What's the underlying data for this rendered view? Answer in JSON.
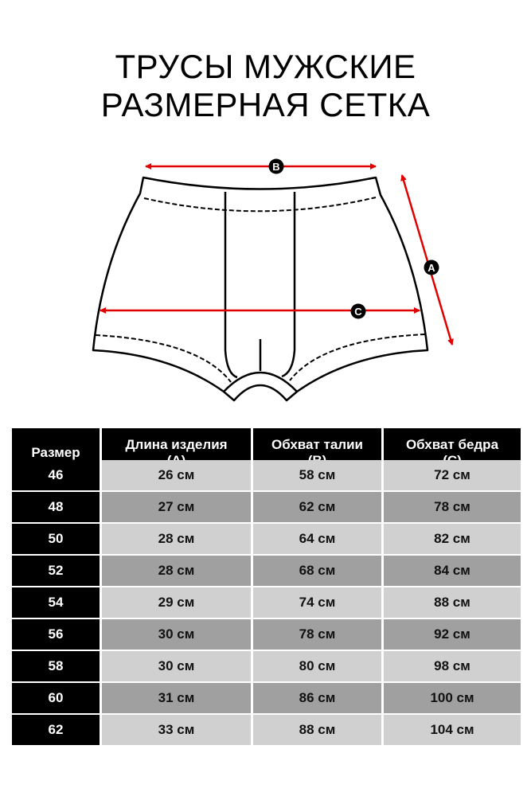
{
  "title": {
    "line1": "ТРУСЫ МУЖСКИЕ",
    "line2": "РАЗМЕРНАЯ СЕТКА"
  },
  "diagram": {
    "labels": {
      "a": "A",
      "b": "B",
      "c": "C"
    },
    "arrow_color": "#e00000"
  },
  "table": {
    "headers": [
      {
        "line1": "Размер",
        "line2": ""
      },
      {
        "line1": "Длина изделия",
        "line2": "(A)"
      },
      {
        "line1": "Обхват талии",
        "line2": "(B)"
      },
      {
        "line1": "Обхват бедра",
        "line2": "(C)"
      }
    ],
    "rows": [
      [
        "46",
        "26 см",
        "58 см",
        "72 см"
      ],
      [
        "48",
        "27 см",
        "62 см",
        "78 см"
      ],
      [
        "50",
        "28 см",
        "64 см",
        "82 см"
      ],
      [
        "52",
        "28 см",
        "68 см",
        "84 см"
      ],
      [
        "54",
        "29 см",
        "74 см",
        "88 см"
      ],
      [
        "56",
        "30 см",
        "78 см",
        "92 см"
      ],
      [
        "58",
        "30 см",
        "80 см",
        "98 см"
      ],
      [
        "60",
        "31 см",
        "86 см",
        "100 см"
      ],
      [
        "62",
        "33 см",
        "88 см",
        "104 см"
      ]
    ],
    "colors": {
      "header": "#000000",
      "row_light": "#d0d0d0",
      "row_dark": "#a0a0a0"
    }
  }
}
